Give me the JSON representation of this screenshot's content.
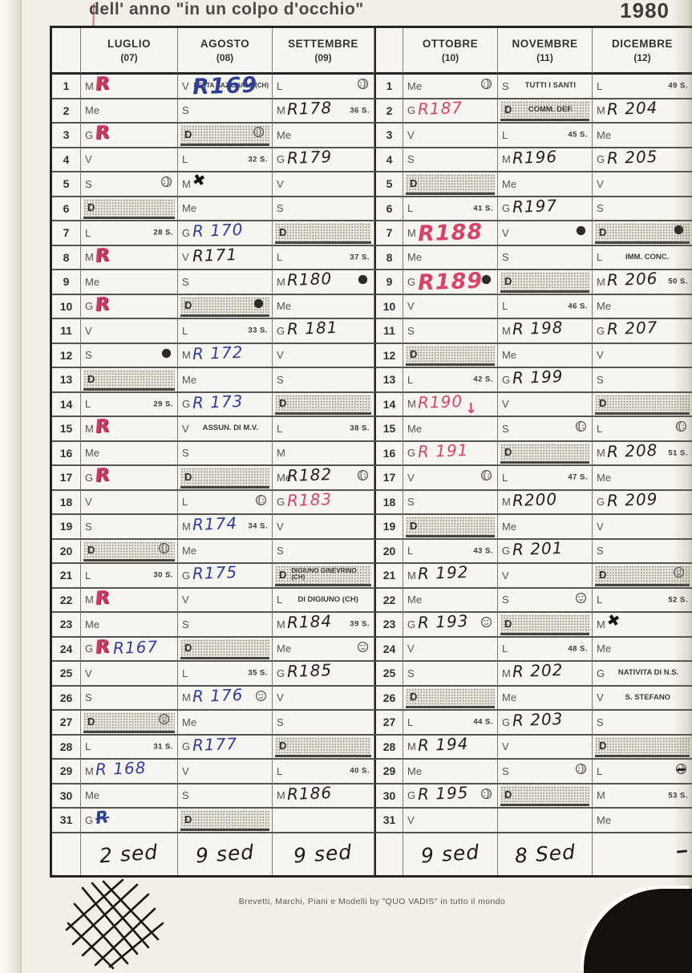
{
  "page": {
    "title": "dell' anno \"in un colpo d'occhio\"",
    "year": "1980",
    "footer": "Brevetti, Marchi, Piani e Modelli  by \"QUO VADIS\" in tutto il mondo"
  },
  "colors": {
    "paper": "#f2efe7",
    "ink_printed": "#3c3a36",
    "hand_black": "#24211d",
    "hand_blue": "#2e3f96",
    "hand_red": "#d8436a"
  },
  "legend": {
    "moon_phases": [
      "new",
      "first",
      "full",
      "last"
    ],
    "week_suffix": "S.",
    "sunday_letter": "D"
  },
  "months": [
    {
      "name": "LUGLIO",
      "num": "(07)",
      "total": "2 sed",
      "days": [
        {
          "d": "M",
          "hand": [
            {
              "t": "R",
              "c": "red",
              "k": "rscrib"
            }
          ]
        },
        {
          "d": "Me"
        },
        {
          "d": "G",
          "hand": [
            {
              "t": "R",
              "c": "red",
              "k": "rscrib"
            }
          ]
        },
        {
          "d": "V"
        },
        {
          "d": "S",
          "moon": "last"
        },
        {
          "d": "D",
          "sun": 1
        },
        {
          "d": "L",
          "wk": "28 S."
        },
        {
          "d": "M",
          "hand": [
            {
              "t": "R",
              "c": "red",
              "k": "rscrib"
            }
          ]
        },
        {
          "d": "Me"
        },
        {
          "d": "G",
          "hand": [
            {
              "t": "R",
              "c": "red",
              "k": "rscrib"
            }
          ]
        },
        {
          "d": "V"
        },
        {
          "d": "S",
          "moon": "new"
        },
        {
          "d": "D",
          "sun": 1
        },
        {
          "d": "L",
          "wk": "29 S."
        },
        {
          "d": "M",
          "hand": [
            {
              "t": "R",
              "c": "red",
              "k": "rscrib"
            }
          ]
        },
        {
          "d": "Me"
        },
        {
          "d": "G",
          "hand": [
            {
              "t": "R",
              "c": "red",
              "k": "rscrib"
            }
          ]
        },
        {
          "d": "V"
        },
        {
          "d": "S"
        },
        {
          "d": "D",
          "sun": 1,
          "moon": "first"
        },
        {
          "d": "L",
          "wk": "30 S."
        },
        {
          "d": "M",
          "hand": [
            {
              "t": "R",
              "c": "red",
              "k": "rscrib"
            }
          ]
        },
        {
          "d": "Me"
        },
        {
          "d": "G",
          "hand": [
            {
              "t": "R",
              "c": "red",
              "k": "rscrib"
            },
            {
              "t": "R167",
              "c": "blue"
            }
          ]
        },
        {
          "d": "V"
        },
        {
          "d": "S"
        },
        {
          "d": "D",
          "sun": 1,
          "moon": "full"
        },
        {
          "d": "L",
          "wk": "31 S."
        },
        {
          "d": "M",
          "hand": [
            {
              "t": "R 168",
              "c": "blue"
            }
          ]
        },
        {
          "d": "Me"
        },
        {
          "d": "G",
          "hand": [
            {
              "t": "R",
              "c": "blue",
              "k": "strike"
            }
          ]
        }
      ]
    },
    {
      "name": "AGOSTO",
      "num": "(08)",
      "total": "9 sed",
      "days": [
        {
          "d": "V",
          "note": "FESTA NAZIONALE (CH)",
          "notetiny": 1,
          "hand": [
            {
              "t": "R169",
              "c": "blue",
              "k": "big"
            }
          ]
        },
        {
          "d": "S"
        },
        {
          "d": "D",
          "sun": 1,
          "moon": "last"
        },
        {
          "d": "L",
          "wk": "32 S."
        },
        {
          "d": "M",
          "hand": [
            {
              "t": "✖",
              "c": "black",
              "k": "blot"
            }
          ]
        },
        {
          "d": "Me"
        },
        {
          "d": "G",
          "hand": [
            {
              "t": "R 170",
              "c": "blue"
            }
          ]
        },
        {
          "d": "V",
          "hand": [
            {
              "t": "R171",
              "c": "black"
            }
          ]
        },
        {
          "d": "S"
        },
        {
          "d": "D",
          "sun": 1,
          "moon": "new"
        },
        {
          "d": "L",
          "wk": "33 S."
        },
        {
          "d": "M",
          "hand": [
            {
              "t": "R 172",
              "c": "blue"
            }
          ]
        },
        {
          "d": "Me"
        },
        {
          "d": "G",
          "hand": [
            {
              "t": "R 173",
              "c": "blue"
            }
          ]
        },
        {
          "d": "V",
          "note": "ASSUN. DI M.V."
        },
        {
          "d": "S"
        },
        {
          "d": "D",
          "sun": 1
        },
        {
          "d": "L",
          "moon": "first"
        },
        {
          "d": "M",
          "wk": "34 S.",
          "hand": [
            {
              "t": "R174",
              "c": "blue"
            }
          ]
        },
        {
          "d": "Me"
        },
        {
          "d": "G",
          "hand": [
            {
              "t": "R175",
              "c": "blue"
            }
          ]
        },
        {
          "d": "V"
        },
        {
          "d": "S"
        },
        {
          "d": "D",
          "sun": 1
        },
        {
          "d": "L",
          "wk": "35 S."
        },
        {
          "d": "M",
          "moon": "full",
          "hand": [
            {
              "t": "R 176",
              "c": "blue"
            }
          ]
        },
        {
          "d": "Me"
        },
        {
          "d": "G",
          "hand": [
            {
              "t": "R177",
              "c": "blue"
            }
          ]
        },
        {
          "d": "V"
        },
        {
          "d": "S"
        },
        {
          "d": "D",
          "sun": 1
        }
      ]
    },
    {
      "name": "SETTEMBRE",
      "num": "(09)",
      "total": "9 sed",
      "days": [
        {
          "d": "L",
          "moon": "last"
        },
        {
          "d": "M",
          "wk": "36 S.",
          "hand": [
            {
              "t": "R178",
              "c": "black"
            }
          ]
        },
        {
          "d": "Me"
        },
        {
          "d": "G",
          "hand": [
            {
              "t": "R179",
              "c": "black"
            }
          ]
        },
        {
          "d": "V"
        },
        {
          "d": "S"
        },
        {
          "d": "D",
          "sun": 1
        },
        {
          "d": "L",
          "wk": "37 S."
        },
        {
          "d": "M",
          "moon": "new",
          "hand": [
            {
              "t": "R180",
              "c": "black"
            }
          ]
        },
        {
          "d": "Me"
        },
        {
          "d": "G",
          "hand": [
            {
              "t": "R 181",
              "c": "black"
            }
          ]
        },
        {
          "d": "V"
        },
        {
          "d": "S"
        },
        {
          "d": "D",
          "sun": 1
        },
        {
          "d": "L",
          "wk": "38 S."
        },
        {
          "d": "M"
        },
        {
          "d": "Me",
          "moon": "first",
          "hand": [
            {
              "t": "R182",
              "c": "black"
            }
          ]
        },
        {
          "d": "G",
          "hand": [
            {
              "t": "R183",
              "c": "red"
            }
          ]
        },
        {
          "d": "V"
        },
        {
          "d": "S"
        },
        {
          "d": "D",
          "sun": 1,
          "note": "DIGIUNO GINEVRINO (CH)",
          "notetiny": 1
        },
        {
          "d": "L",
          "note": "DI DIGIUNO (CH)"
        },
        {
          "d": "M",
          "wk": "39 S.",
          "hand": [
            {
              "t": "R184",
              "c": "black"
            }
          ]
        },
        {
          "d": "Me",
          "moon": "full"
        },
        {
          "d": "G",
          "hand": [
            {
              "t": "R185",
              "c": "black"
            }
          ]
        },
        {
          "d": "V"
        },
        {
          "d": "S"
        },
        {
          "d": "D",
          "sun": 1
        },
        {
          "d": "L",
          "wk": "40 S."
        },
        {
          "d": "M",
          "hand": [
            {
              "t": "R186",
              "c": "black"
            }
          ]
        },
        null
      ]
    },
    {
      "name": "OTTOBRE",
      "num": "(10)",
      "total": "9 sed",
      "days": [
        {
          "d": "Me",
          "moon": "last"
        },
        {
          "d": "G",
          "hand": [
            {
              "t": "R187",
              "c": "red"
            }
          ]
        },
        {
          "d": "V"
        },
        {
          "d": "S"
        },
        {
          "d": "D",
          "sun": 1
        },
        {
          "d": "L",
          "wk": "41 S."
        },
        {
          "d": "M",
          "hand": [
            {
              "t": "R188",
              "c": "red",
              "k": "big"
            }
          ]
        },
        {
          "d": "Me"
        },
        {
          "d": "G",
          "moon": "new",
          "hand": [
            {
              "t": "R189",
              "c": "red",
              "k": "big"
            }
          ]
        },
        {
          "d": "V"
        },
        {
          "d": "S"
        },
        {
          "d": "D",
          "sun": 1
        },
        {
          "d": "L",
          "wk": "42 S."
        },
        {
          "d": "M",
          "hand": [
            {
              "t": "R190",
              "c": "red"
            },
            {
              "t": "↓",
              "c": "red",
              "k": "arrow"
            }
          ]
        },
        {
          "d": "Me"
        },
        {
          "d": "G",
          "hand": [
            {
              "t": "R 191",
              "c": "red"
            }
          ]
        },
        {
          "d": "V",
          "moon": "first"
        },
        {
          "d": "S"
        },
        {
          "d": "D",
          "sun": 1
        },
        {
          "d": "L",
          "wk": "43 S."
        },
        {
          "d": "M",
          "hand": [
            {
              "t": "R 192",
              "c": "black"
            }
          ]
        },
        {
          "d": "Me"
        },
        {
          "d": "G",
          "moon": "full",
          "hand": [
            {
              "t": "R 193",
              "c": "black"
            }
          ]
        },
        {
          "d": "V"
        },
        {
          "d": "S"
        },
        {
          "d": "D",
          "sun": 1
        },
        {
          "d": "L",
          "wk": "44 S."
        },
        {
          "d": "M",
          "hand": [
            {
              "t": "R 194",
              "c": "black"
            }
          ]
        },
        {
          "d": "Me"
        },
        {
          "d": "G",
          "moon": "last",
          "hand": [
            {
              "t": "R 195",
              "c": "black"
            }
          ]
        },
        {
          "d": "V"
        }
      ]
    },
    {
      "name": "NOVEMBRE",
      "num": "(11)",
      "total": "8 Sed",
      "days": [
        {
          "d": "S",
          "note": "TUTTI I SANTI"
        },
        {
          "d": "D",
          "sun": 1,
          "note": "COMM. DEF."
        },
        {
          "d": "L",
          "wk": "45 S."
        },
        {
          "d": "M",
          "hand": [
            {
              "t": "R196",
              "c": "black"
            }
          ]
        },
        {
          "d": "Me"
        },
        {
          "d": "G",
          "hand": [
            {
              "t": "R197",
              "c": "black"
            }
          ]
        },
        {
          "d": "V",
          "moon": "new"
        },
        {
          "d": "S"
        },
        {
          "d": "D",
          "sun": 1
        },
        {
          "d": "L",
          "wk": "46 S."
        },
        {
          "d": "M",
          "hand": [
            {
              "t": "R 198",
              "c": "black"
            }
          ]
        },
        {
          "d": "Me"
        },
        {
          "d": "G",
          "hand": [
            {
              "t": "R 199",
              "c": "black"
            }
          ]
        },
        {
          "d": "V"
        },
        {
          "d": "S",
          "moon": "first"
        },
        {
          "d": "D",
          "sun": 1
        },
        {
          "d": "L",
          "wk": "47 S."
        },
        {
          "d": "M",
          "hand": [
            {
              "t": "R200",
              "c": "black"
            }
          ]
        },
        {
          "d": "Me"
        },
        {
          "d": "G",
          "hand": [
            {
              "t": "R 201",
              "c": "black"
            }
          ]
        },
        {
          "d": "V"
        },
        {
          "d": "S",
          "moon": "full"
        },
        {
          "d": "D",
          "sun": 1
        },
        {
          "d": "L",
          "wk": "48 S."
        },
        {
          "d": "M",
          "hand": [
            {
              "t": "R 202",
              "c": "black"
            }
          ]
        },
        {
          "d": "Me"
        },
        {
          "d": "G",
          "hand": [
            {
              "t": "R 203",
              "c": "black"
            }
          ]
        },
        {
          "d": "V"
        },
        {
          "d": "S",
          "moon": "last"
        },
        {
          "d": "D",
          "sun": 1
        },
        null
      ]
    },
    {
      "name": "DICEMBRE",
      "num": "(12)",
      "total": "",
      "days": [
        {
          "d": "L",
          "wk": "49 S."
        },
        {
          "d": "M",
          "hand": [
            {
              "t": "R 204",
              "c": "black"
            }
          ]
        },
        {
          "d": "Me"
        },
        {
          "d": "G",
          "hand": [
            {
              "t": "R 205",
              "c": "black"
            }
          ]
        },
        {
          "d": "V"
        },
        {
          "d": "S"
        },
        {
          "d": "D",
          "sun": 1,
          "moon": "new"
        },
        {
          "d": "L",
          "note": "IMM. CONC."
        },
        {
          "d": "M",
          "wk": "50 S.",
          "hand": [
            {
              "t": "R 206",
              "c": "black"
            }
          ]
        },
        {
          "d": "Me"
        },
        {
          "d": "G",
          "hand": [
            {
              "t": "R 207",
              "c": "black"
            }
          ]
        },
        {
          "d": "V"
        },
        {
          "d": "S"
        },
        {
          "d": "D",
          "sun": 1
        },
        {
          "d": "L",
          "moon": "first"
        },
        {
          "d": "M",
          "wk": "51 S.",
          "hand": [
            {
              "t": "R 208",
              "c": "black"
            }
          ]
        },
        {
          "d": "Me"
        },
        {
          "d": "G",
          "hand": [
            {
              "t": "R 209",
              "c": "black"
            }
          ]
        },
        {
          "d": "V"
        },
        {
          "d": "S"
        },
        {
          "d": "D",
          "sun": 1,
          "moon": "full"
        },
        {
          "d": "L",
          "wk": "52 S."
        },
        {
          "d": "M",
          "hand": [
            {
              "t": "✖",
              "c": "black",
              "k": "blot"
            }
          ]
        },
        {
          "d": "Me"
        },
        {
          "d": "G",
          "note": "NATIVITA DI N.S."
        },
        {
          "d": "V",
          "note": "S. STEFANO"
        },
        {
          "d": "S"
        },
        {
          "d": "D",
          "sun": 1
        },
        {
          "d": "L",
          "moon": "last"
        },
        {
          "d": "M",
          "wk": "53 S."
        },
        {
          "d": "Me"
        }
      ]
    }
  ]
}
